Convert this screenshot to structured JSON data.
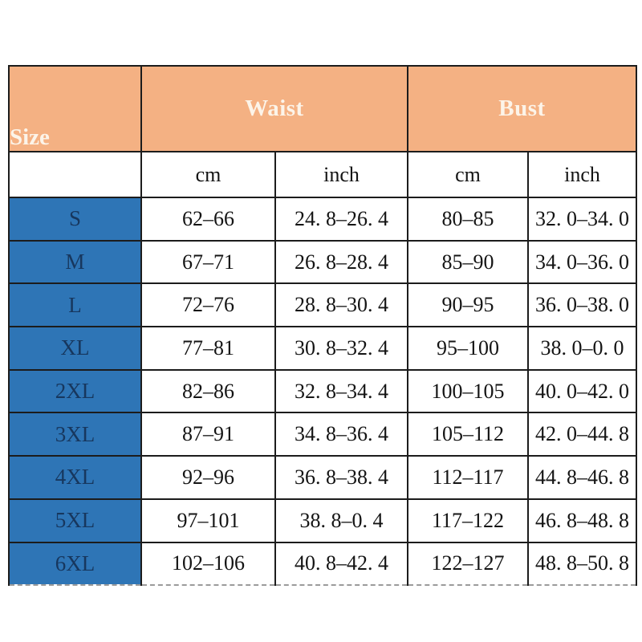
{
  "chart_data": {
    "type": "table",
    "title": "",
    "corner_header": "Size",
    "groups": [
      {
        "label": "Waist",
        "columns": [
          "cm",
          "inch"
        ]
      },
      {
        "label": "Bust",
        "columns": [
          "cm",
          "inch"
        ]
      }
    ],
    "unit_row": [
      "cm",
      "inch",
      "cm",
      "inch"
    ],
    "rows": [
      [
        "S",
        "62–66",
        "24. 8–26. 4",
        "80–85",
        "32. 0–34. 0"
      ],
      [
        "M",
        "67–71",
        "26. 8–28. 4",
        "85–90",
        "34. 0–36. 0"
      ],
      [
        "L",
        "72–76",
        "28. 8–30. 4",
        "90–95",
        "36. 0–38. 0"
      ],
      [
        "XL",
        "77–81",
        "30. 8–32. 4",
        "95–100",
        "38. 0–0. 0"
      ],
      [
        "2XL",
        "82–86",
        "32. 8–34. 4",
        "100–105",
        "40. 0–42. 0"
      ],
      [
        "3XL",
        "87–91",
        "34. 8–36. 4",
        "105–112",
        "42. 0–44. 8"
      ],
      [
        "4XL",
        "92–96",
        "36. 8–38. 4",
        "112–117",
        "44. 8–46. 8"
      ],
      [
        "5XL",
        "97–101",
        "38. 8–0. 4",
        "117–122",
        "46. 8–48. 8"
      ],
      [
        "6XL",
        "102–106",
        "40. 8–42. 4",
        "122–127",
        "48. 8–50. 8"
      ]
    ],
    "colors": {
      "header_bg": "#F4B183",
      "header_text": "#FCF4E9",
      "size_column_bg": "#2E75B6",
      "size_column_text": "#17375E",
      "body_text": "#141414",
      "border": "#1C1C1C",
      "page_bg": "#FFFFFF"
    },
    "layout": {
      "grid": "on",
      "legend": "none"
    }
  }
}
